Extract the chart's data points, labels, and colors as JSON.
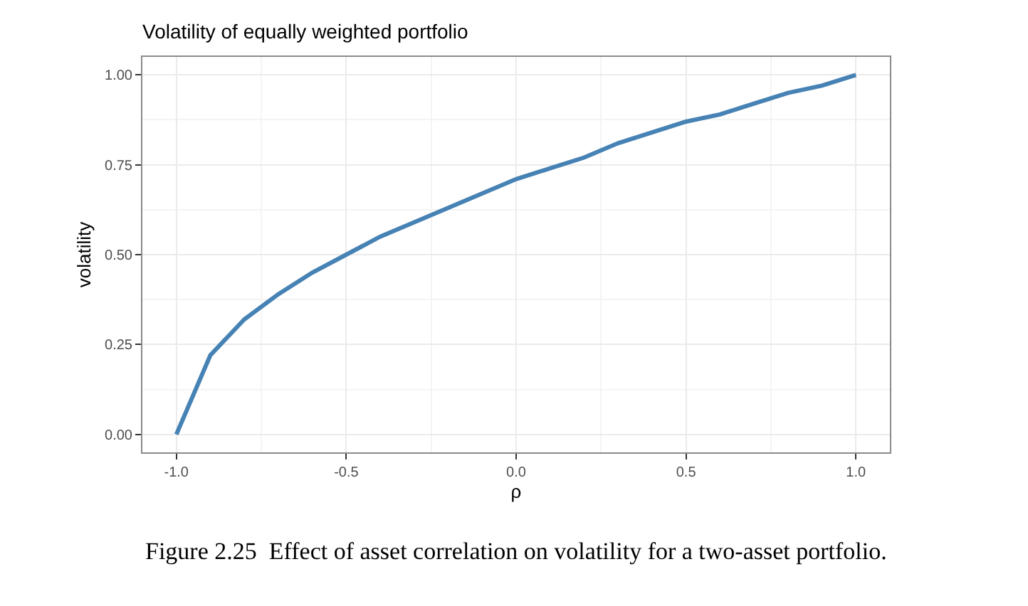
{
  "chart_data": {
    "type": "line",
    "title": "Volatility of equally weighted portfolio",
    "xlabel": "ρ",
    "ylabel": "volatility",
    "x": [
      -1.0,
      -0.9,
      -0.8,
      -0.7,
      -0.6,
      -0.5,
      -0.4,
      -0.3,
      -0.2,
      -0.1,
      0.0,
      0.1,
      0.2,
      0.3,
      0.4,
      0.5,
      0.6,
      0.7,
      0.8,
      0.9,
      1.0
    ],
    "series": [
      {
        "color": "#4682b4",
        "values": [
          0.0,
          0.22,
          0.32,
          0.39,
          0.45,
          0.5,
          0.55,
          0.59,
          0.63,
          0.67,
          0.71,
          0.74,
          0.77,
          0.81,
          0.84,
          0.87,
          0.89,
          0.92,
          0.95,
          0.97,
          1.0
        ]
      }
    ],
    "xlim": [
      -1.1,
      1.1
    ],
    "xticks": [
      {
        "value": -1.0,
        "label": "-1.0"
      },
      {
        "value": -0.5,
        "label": "-0.5"
      },
      {
        "value": 0.0,
        "label": "0.0"
      },
      {
        "value": 0.5,
        "label": "0.5"
      },
      {
        "value": 1.0,
        "label": "1.0"
      }
    ],
    "ylim": [
      -0.05,
      1.05
    ],
    "yticks": [
      {
        "value": 0.0,
        "label": "0.00"
      },
      {
        "value": 0.25,
        "label": "0.25"
      },
      {
        "value": 0.5,
        "label": "0.50"
      },
      {
        "value": 0.75,
        "label": "0.75"
      },
      {
        "value": 1.0,
        "label": "1.00"
      }
    ],
    "grid": true,
    "marker": "none",
    "line_style": "solid",
    "annotations": [
      "Figure 2.25  Effect of asset correlation on volatility for a two-asset portfolio."
    ]
  }
}
